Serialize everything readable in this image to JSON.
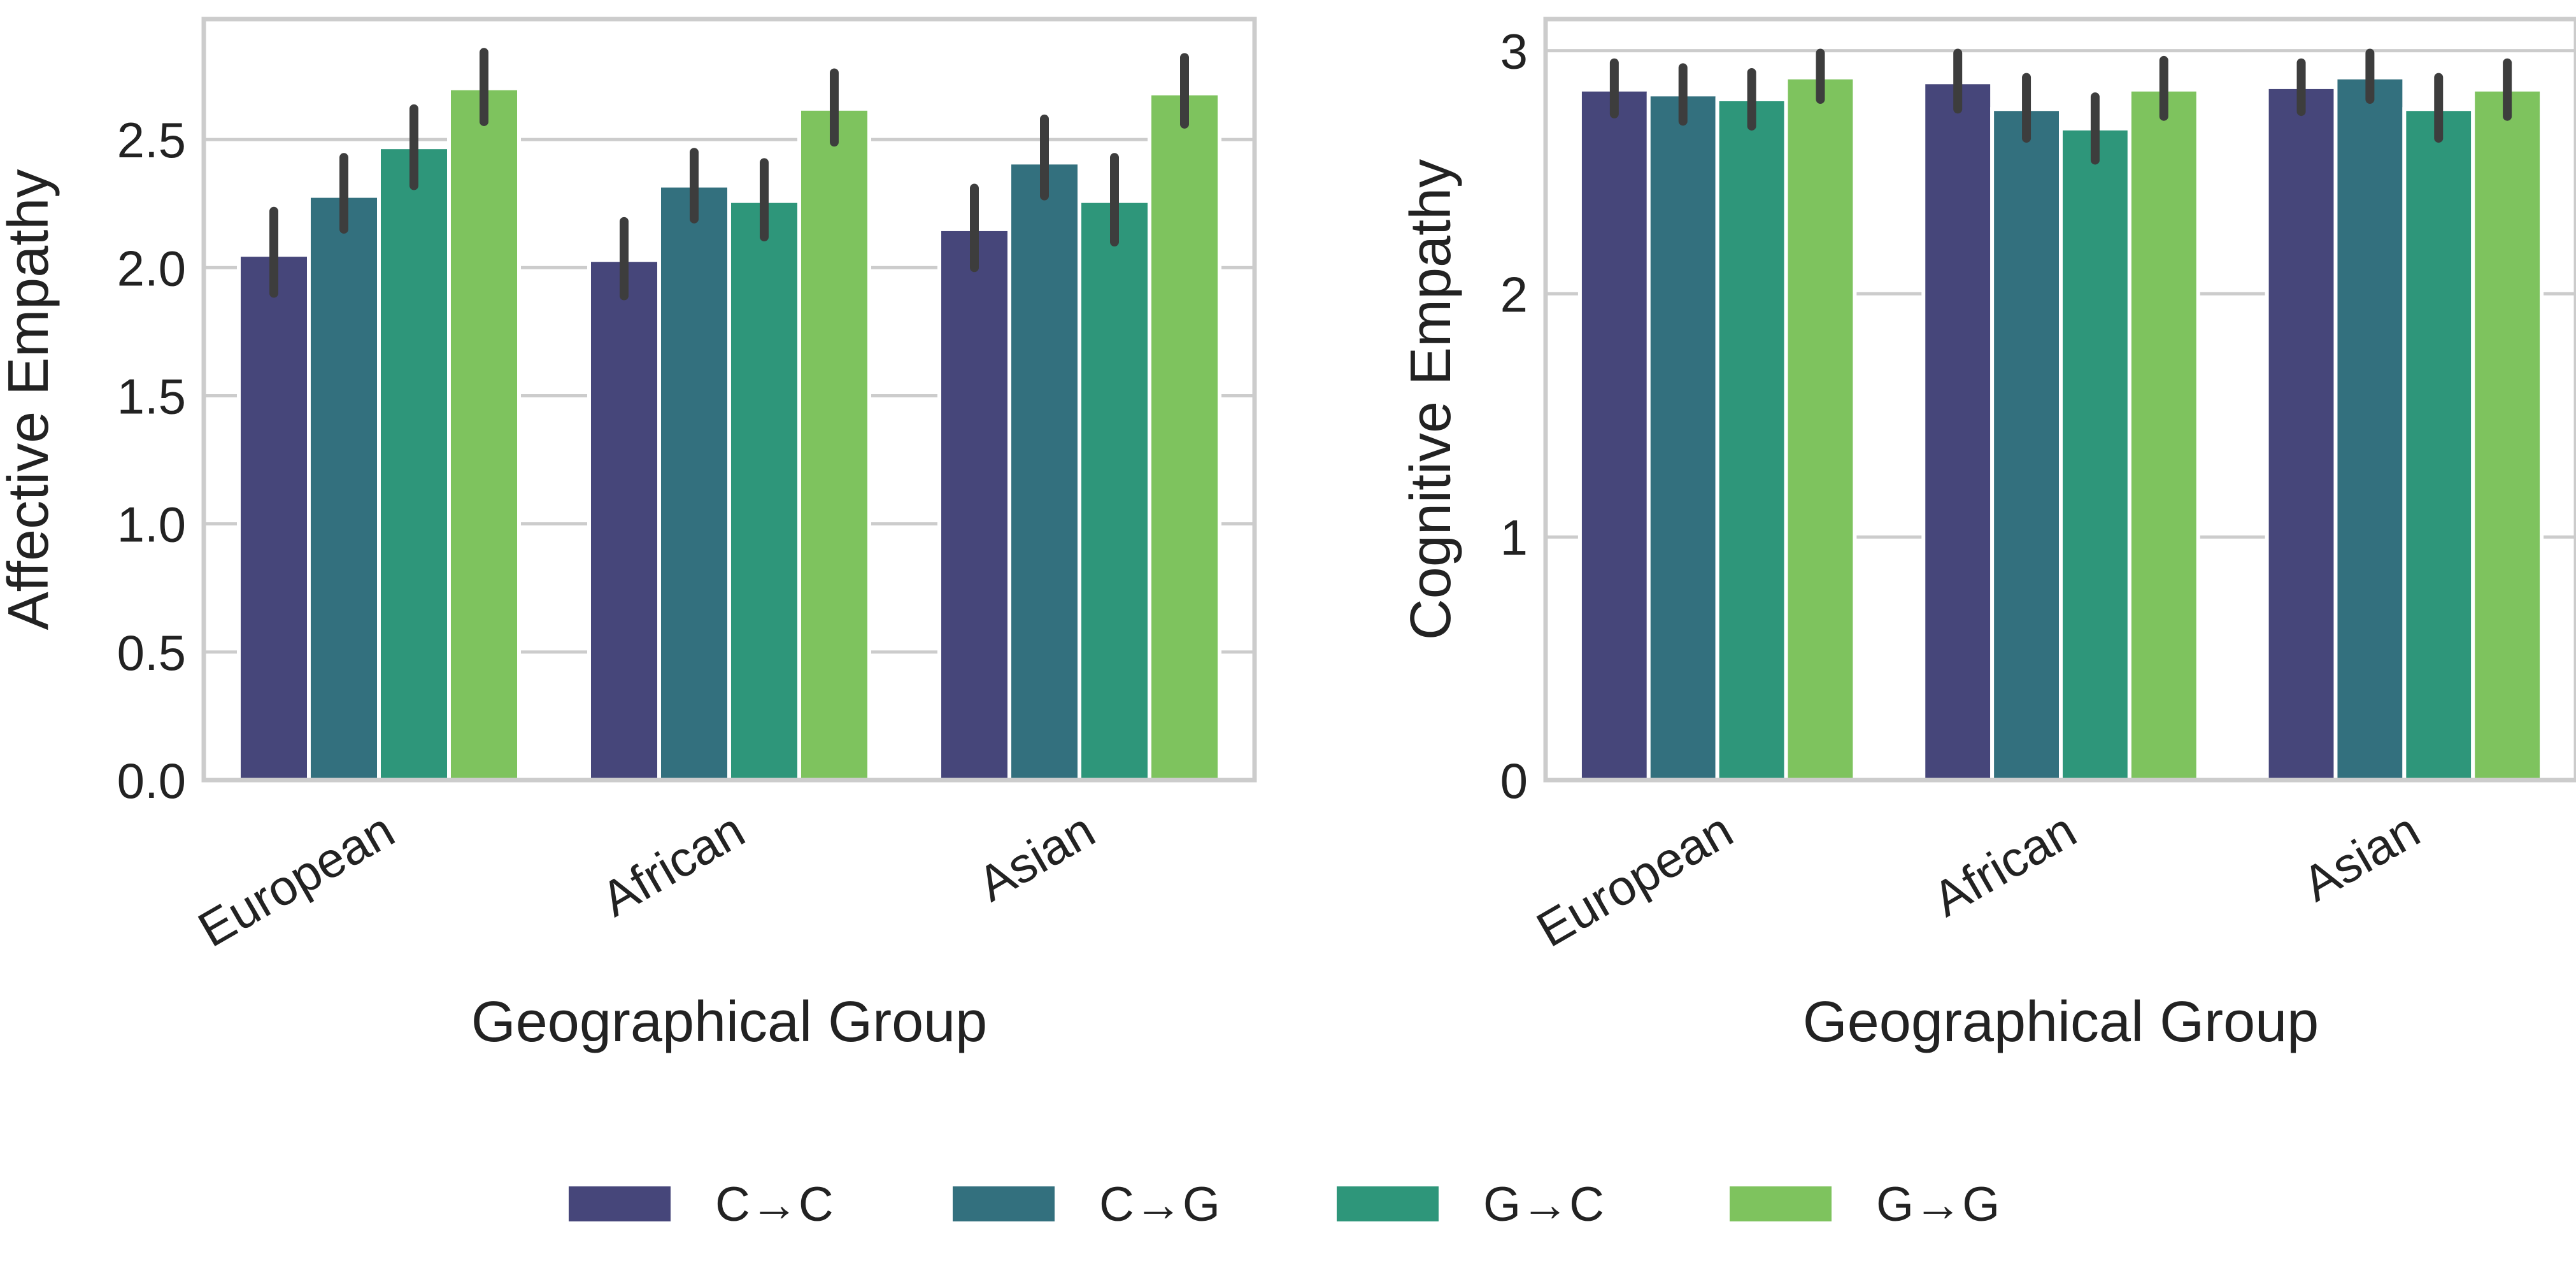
{
  "legend": {
    "entries": [
      {
        "label": "C→C",
        "color": "#46467a"
      },
      {
        "label": "C→G",
        "color": "#33707e"
      },
      {
        "label": "G→C",
        "color": "#2e967a"
      },
      {
        "label": "G→G",
        "color": "#7ec35e"
      }
    ],
    "placement": "bottom-center"
  },
  "chart_data": [
    {
      "type": "bar",
      "categories": [
        "European",
        "African",
        "Asian"
      ],
      "xlabel": "Geographical Group",
      "ylabel": "Affective Empathy",
      "ylim": [
        0,
        2.97
      ],
      "yticks": [
        "0.0",
        "0.5",
        "1.0",
        "1.5",
        "2.0",
        "2.5"
      ],
      "ytick_values": [
        0,
        0.5,
        1.0,
        1.5,
        2.0,
        2.5
      ],
      "grid": "horizontal",
      "series": [
        {
          "name": "C→C",
          "values": [
            2.05,
            2.03,
            2.15
          ],
          "err_low": [
            1.9,
            1.89,
            2.0
          ],
          "err_high": [
            2.22,
            2.18,
            2.31
          ]
        },
        {
          "name": "C→G",
          "values": [
            2.28,
            2.32,
            2.41
          ],
          "err_low": [
            2.15,
            2.19,
            2.28
          ],
          "err_high": [
            2.43,
            2.45,
            2.58
          ]
        },
        {
          "name": "G→C",
          "values": [
            2.47,
            2.26,
            2.26
          ],
          "err_low": [
            2.32,
            2.12,
            2.1
          ],
          "err_high": [
            2.62,
            2.41,
            2.43
          ]
        },
        {
          "name": "G→G",
          "values": [
            2.7,
            2.62,
            2.68
          ],
          "err_low": [
            2.57,
            2.49,
            2.56
          ],
          "err_high": [
            2.84,
            2.76,
            2.82
          ]
        }
      ]
    },
    {
      "type": "bar",
      "categories": [
        "European",
        "African",
        "Asian"
      ],
      "xlabel": "Geographical Group",
      "ylabel": "Cognitive Empathy",
      "ylim": [
        0,
        3.13
      ],
      "yticks": [
        "0",
        "1",
        "2",
        "3"
      ],
      "ytick_values": [
        0,
        1,
        2,
        3
      ],
      "grid": "horizontal",
      "series": [
        {
          "name": "C→C",
          "values": [
            2.84,
            2.87,
            2.85
          ],
          "err_low": [
            2.74,
            2.76,
            2.75
          ],
          "err_high": [
            2.95,
            2.99,
            2.95
          ]
        },
        {
          "name": "C→G",
          "values": [
            2.82,
            2.76,
            2.89
          ],
          "err_low": [
            2.71,
            2.64,
            2.8
          ],
          "err_high": [
            2.93,
            2.89,
            2.99
          ]
        },
        {
          "name": "G→C",
          "values": [
            2.8,
            2.68,
            2.76
          ],
          "err_low": [
            2.69,
            2.55,
            2.64
          ],
          "err_high": [
            2.91,
            2.81,
            2.89
          ]
        },
        {
          "name": "G→G",
          "values": [
            2.89,
            2.84,
            2.84
          ],
          "err_low": [
            2.8,
            2.73,
            2.73
          ],
          "err_high": [
            2.99,
            2.96,
            2.95
          ]
        }
      ]
    }
  ]
}
